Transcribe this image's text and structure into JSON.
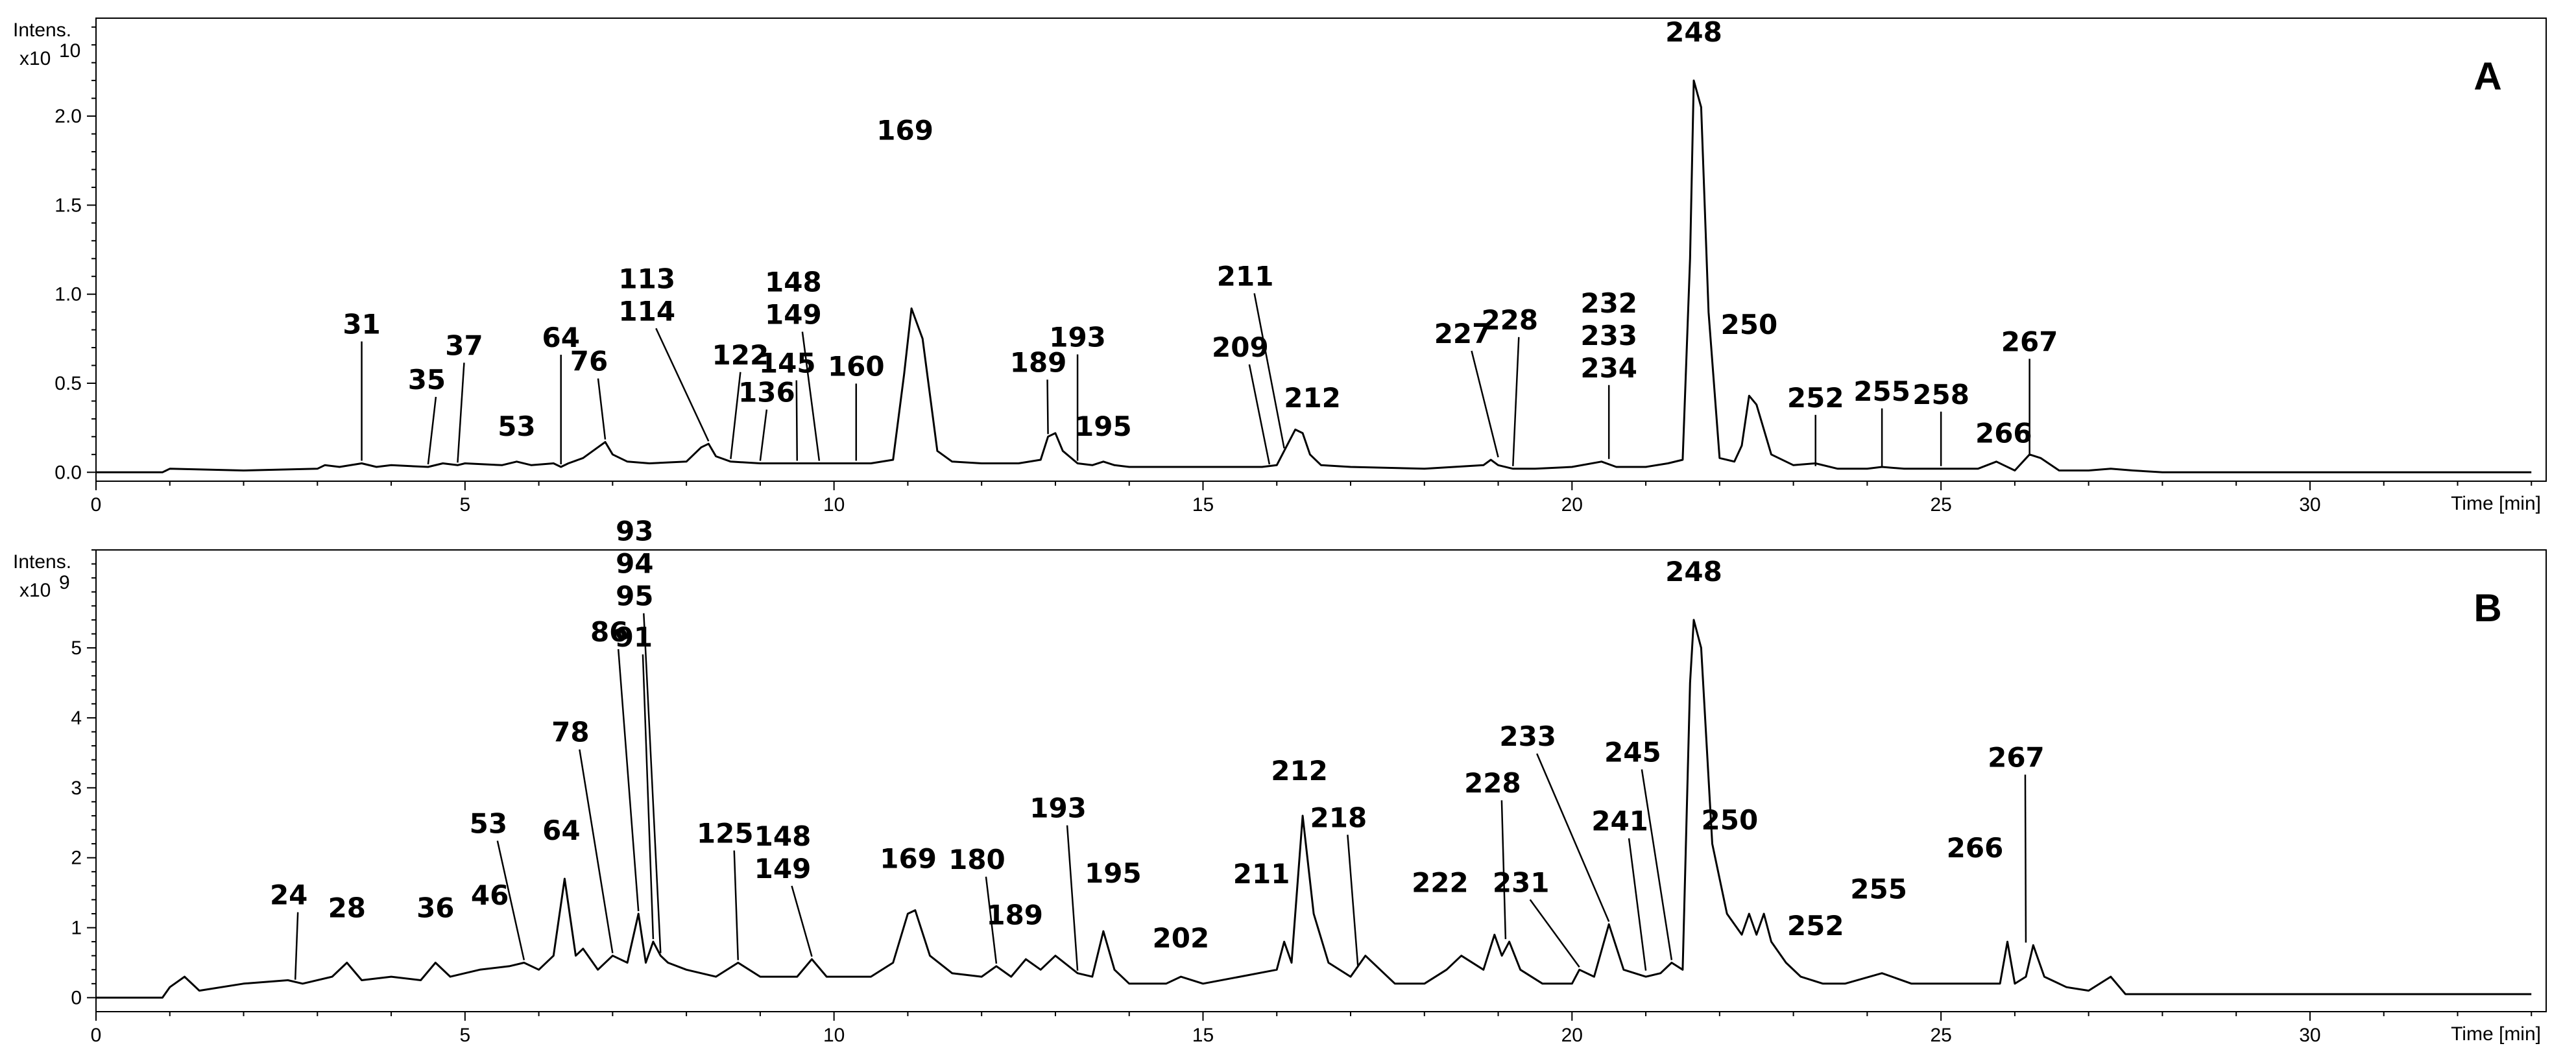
{
  "chart_data": [
    {
      "type": "line",
      "panel_label": "A",
      "ylabel": "Intens.",
      "y_multiplier": "x10",
      "y_exponent": "10",
      "xlabel": "Time [min]",
      "xlim": [
        0,
        33.2
      ],
      "ylim": [
        -0.05,
        2.55
      ],
      "xticks": [
        0,
        5,
        10,
        15,
        20,
        25,
        30
      ],
      "yticks": [
        0.0,
        0.5,
        1.0,
        1.5,
        2.0
      ],
      "ytick_labels": [
        "0.0",
        "0.5",
        "1.0",
        "1.5",
        "2.0"
      ],
      "series": [
        {
          "x": [
            0.0,
            0.9,
            1.0,
            2.0,
            3.0,
            3.1,
            3.3,
            3.6,
            3.8,
            4.0,
            4.5,
            4.7,
            4.9,
            5.0,
            5.5,
            5.7,
            5.9,
            6.2,
            6.3,
            6.4,
            6.6,
            6.8,
            6.9,
            7.0,
            7.2,
            7.5,
            8.0,
            8.2,
            8.3,
            8.4,
            8.6,
            9.0,
            9.5,
            10.0,
            10.5,
            10.8,
            10.95,
            11.05,
            11.2,
            11.4,
            11.6,
            12.0,
            12.5,
            12.8,
            12.9,
            13.0,
            13.1,
            13.3,
            13.5,
            13.65,
            13.8,
            14.0,
            15.0,
            15.8,
            16.0,
            16.1,
            16.25,
            16.35,
            16.45,
            16.6,
            17.0,
            18.0,
            18.8,
            18.9,
            19.0,
            19.2,
            19.5,
            20.0,
            20.4,
            20.6,
            21.0,
            21.3,
            21.5,
            21.6,
            21.65,
            21.75,
            21.85,
            22.0,
            22.2,
            22.3,
            22.4,
            22.5,
            22.7,
            23.0,
            23.3,
            23.6,
            24.0,
            24.2,
            24.5,
            25.0,
            25.5,
            25.75,
            25.85,
            26.0,
            26.2,
            26.35,
            26.6,
            27.0,
            27.3,
            27.6,
            28.0,
            29.0,
            30.0,
            31.0,
            32.0,
            33.0
          ],
          "y": [
            0.0,
            0.0,
            0.02,
            0.01,
            0.02,
            0.04,
            0.03,
            0.05,
            0.03,
            0.04,
            0.03,
            0.05,
            0.04,
            0.05,
            0.04,
            0.06,
            0.04,
            0.05,
            0.03,
            0.05,
            0.08,
            0.14,
            0.17,
            0.1,
            0.06,
            0.05,
            0.06,
            0.14,
            0.16,
            0.09,
            0.06,
            0.05,
            0.05,
            0.05,
            0.05,
            0.07,
            0.55,
            0.92,
            0.75,
            0.12,
            0.06,
            0.05,
            0.05,
            0.07,
            0.2,
            0.22,
            0.12,
            0.05,
            0.04,
            0.06,
            0.04,
            0.03,
            0.03,
            0.03,
            0.04,
            0.12,
            0.24,
            0.22,
            0.1,
            0.04,
            0.03,
            0.02,
            0.04,
            0.07,
            0.04,
            0.02,
            0.02,
            0.03,
            0.06,
            0.03,
            0.03,
            0.05,
            0.07,
            1.2,
            2.2,
            2.05,
            0.9,
            0.08,
            0.06,
            0.15,
            0.43,
            0.38,
            0.1,
            0.04,
            0.05,
            0.02,
            0.02,
            0.03,
            0.02,
            0.02,
            0.02,
            0.06,
            0.04,
            0.01,
            0.1,
            0.08,
            0.01,
            0.01,
            0.02,
            0.01,
            0.0,
            0.0,
            0.0,
            0.0,
            0.0,
            0.0
          ]
        }
      ],
      "peaks": [
        {
          "label": "31",
          "x": 3.6,
          "y": 0.05
        },
        {
          "label": "35",
          "x": 4.5,
          "y": 0.03
        },
        {
          "label": "37",
          "x": 4.9,
          "y": 0.04
        },
        {
          "label": "53",
          "x": 5.7,
          "y": 0.06
        },
        {
          "label": "64",
          "x": 6.3,
          "y": 0.03
        },
        {
          "label": "76",
          "x": 6.9,
          "y": 0.17
        },
        {
          "label": "113",
          "x": 8.3,
          "y": 0.16
        },
        {
          "label": "114",
          "x": 8.3,
          "y": 0.16
        },
        {
          "label": "122",
          "x": 8.6,
          "y": 0.06
        },
        {
          "label": "136",
          "x": 9.0,
          "y": 0.05
        },
        {
          "label": "145",
          "x": 9.5,
          "y": 0.05
        },
        {
          "label": "148",
          "x": 9.8,
          "y": 0.05
        },
        {
          "label": "149",
          "x": 9.8,
          "y": 0.05
        },
        {
          "label": "160",
          "x": 10.3,
          "y": 0.05
        },
        {
          "label": "169",
          "x": 11.05,
          "y": 0.92
        },
        {
          "label": "189",
          "x": 12.9,
          "y": 0.2
        },
        {
          "label": "193",
          "x": 13.3,
          "y": 0.05
        },
        {
          "label": "195",
          "x": 13.65,
          "y": 0.06
        },
        {
          "label": "209",
          "x": 15.9,
          "y": 0.03
        },
        {
          "label": "211",
          "x": 16.1,
          "y": 0.12
        },
        {
          "label": "212",
          "x": 16.35,
          "y": 0.22
        },
        {
          "label": "227",
          "x": 19.0,
          "y": 0.07
        },
        {
          "label": "228",
          "x": 19.2,
          "y": 0.02
        },
        {
          "label": "232",
          "x": 20.5,
          "y": 0.06
        },
        {
          "label": "233",
          "x": 20.5,
          "y": 0.06
        },
        {
          "label": "234",
          "x": 20.5,
          "y": 0.06
        },
        {
          "label": "248",
          "x": 21.65,
          "y": 2.2
        },
        {
          "label": "250",
          "x": 22.4,
          "y": 0.43
        },
        {
          "label": "252",
          "x": 23.3,
          "y": 0.02
        },
        {
          "label": "255",
          "x": 24.2,
          "y": 0.02
        },
        {
          "label": "258",
          "x": 25.0,
          "y": 0.02
        },
        {
          "label": "266",
          "x": 25.85,
          "y": 0.04
        },
        {
          "label": "267",
          "x": 26.2,
          "y": 0.08
        }
      ]
    },
    {
      "type": "line",
      "panel_label": "B",
      "ylabel": "Intens.",
      "y_multiplier": "x10",
      "y_exponent": "9",
      "xlabel": "Time [min]",
      "xlim": [
        0,
        33.2
      ],
      "ylim": [
        -0.2,
        6.4
      ],
      "xticks": [
        0,
        5,
        10,
        15,
        20,
        25,
        30
      ],
      "yticks": [
        0,
        1,
        2,
        3,
        4,
        5
      ],
      "ytick_labels": [
        "0",
        "1",
        "2",
        "3",
        "4",
        "5"
      ],
      "series": [
        {
          "x": [
            0.0,
            0.9,
            1.0,
            1.2,
            1.4,
            2.0,
            2.6,
            2.8,
            3.2,
            3.4,
            3.6,
            4.0,
            4.4,
            4.6,
            4.8,
            5.0,
            5.2,
            5.6,
            5.8,
            6.0,
            6.2,
            6.35,
            6.5,
            6.6,
            6.8,
            7.0,
            7.2,
            7.35,
            7.45,
            7.55,
            7.65,
            7.75,
            8.0,
            8.4,
            8.7,
            9.0,
            9.5,
            9.7,
            9.9,
            10.5,
            10.8,
            11.0,
            11.1,
            11.3,
            11.6,
            12.0,
            12.2,
            12.4,
            12.6,
            12.8,
            13.0,
            13.3,
            13.5,
            13.65,
            13.8,
            14.0,
            14.5,
            14.7,
            15.0,
            15.5,
            16.0,
            16.1,
            16.2,
            16.35,
            16.5,
            16.7,
            17.0,
            17.2,
            17.6,
            18.0,
            18.3,
            18.5,
            18.8,
            18.95,
            19.05,
            19.15,
            19.3,
            19.6,
            20.0,
            20.1,
            20.3,
            20.5,
            20.7,
            21.0,
            21.2,
            21.35,
            21.5,
            21.6,
            21.65,
            21.75,
            21.9,
            22.1,
            22.3,
            22.4,
            22.5,
            22.6,
            22.7,
            22.9,
            23.1,
            23.4,
            23.7,
            24.2,
            24.6,
            25.0,
            25.5,
            25.8,
            25.9,
            26.0,
            26.15,
            26.25,
            26.4,
            26.7,
            27.0,
            27.3,
            27.5,
            28.0,
            29.0,
            30.0,
            31.0,
            32.0,
            33.0
          ],
          "y": [
            0.0,
            0.0,
            0.15,
            0.3,
            0.1,
            0.2,
            0.25,
            0.2,
            0.3,
            0.5,
            0.25,
            0.3,
            0.25,
            0.5,
            0.3,
            0.35,
            0.4,
            0.45,
            0.5,
            0.4,
            0.6,
            1.7,
            0.6,
            0.7,
            0.4,
            0.6,
            0.5,
            1.2,
            0.5,
            0.8,
            0.6,
            0.5,
            0.4,
            0.3,
            0.5,
            0.3,
            0.3,
            0.55,
            0.3,
            0.3,
            0.5,
            1.2,
            1.25,
            0.6,
            0.35,
            0.3,
            0.45,
            0.3,
            0.55,
            0.4,
            0.6,
            0.35,
            0.3,
            0.95,
            0.4,
            0.2,
            0.2,
            0.3,
            0.2,
            0.3,
            0.4,
            0.8,
            0.5,
            2.6,
            1.2,
            0.5,
            0.3,
            0.6,
            0.2,
            0.2,
            0.4,
            0.6,
            0.4,
            0.9,
            0.6,
            0.8,
            0.4,
            0.2,
            0.2,
            0.4,
            0.3,
            1.05,
            0.4,
            0.3,
            0.35,
            0.5,
            0.4,
            4.5,
            5.4,
            5.0,
            2.2,
            1.2,
            0.9,
            1.2,
            0.9,
            1.2,
            0.8,
            0.5,
            0.3,
            0.2,
            0.2,
            0.35,
            0.2,
            0.2,
            0.2,
            0.2,
            0.8,
            0.2,
            0.3,
            0.75,
            0.3,
            0.15,
            0.1,
            0.3,
            0.05,
            0.05,
            0.05,
            0.05,
            0.05,
            0.05,
            0.05
          ]
        }
      ],
      "peaks": [
        {
          "label": "24",
          "x": 2.7,
          "y": 0.22
        },
        {
          "label": "28",
          "x": 3.4,
          "y": 0.5
        },
        {
          "label": "36",
          "x": 4.6,
          "y": 0.5
        },
        {
          "label": "46",
          "x": 5.6,
          "y": 0.45
        },
        {
          "label": "53",
          "x": 5.8,
          "y": 0.5
        },
        {
          "label": "64",
          "x": 6.35,
          "y": 1.7
        },
        {
          "label": "78",
          "x": 7.0,
          "y": 0.6
        },
        {
          "label": "86",
          "x": 7.35,
          "y": 1.2
        },
        {
          "label": "91",
          "x": 7.55,
          "y": 0.8
        },
        {
          "label": "93",
          "x": 7.65,
          "y": 0.6
        },
        {
          "label": "94",
          "x": 7.65,
          "y": 0.6
        },
        {
          "label": "95",
          "x": 7.65,
          "y": 0.6
        },
        {
          "label": "125",
          "x": 8.7,
          "y": 0.5
        },
        {
          "label": "148",
          "x": 9.7,
          "y": 0.55
        },
        {
          "label": "149",
          "x": 9.7,
          "y": 0.55
        },
        {
          "label": "169",
          "x": 11.05,
          "y": 1.25
        },
        {
          "label": "180",
          "x": 12.2,
          "y": 0.45
        },
        {
          "label": "189",
          "x": 12.8,
          "y": 0.4
        },
        {
          "label": "193",
          "x": 13.3,
          "y": 0.35
        },
        {
          "label": "195",
          "x": 13.65,
          "y": 0.95
        },
        {
          "label": "202",
          "x": 14.7,
          "y": 0.3
        },
        {
          "label": "211",
          "x": 16.1,
          "y": 0.8
        },
        {
          "label": "212",
          "x": 16.35,
          "y": 2.6
        },
        {
          "label": "218",
          "x": 17.1,
          "y": 0.4
        },
        {
          "label": "222",
          "x": 18.3,
          "y": 0.4
        },
        {
          "label": "228",
          "x": 19.1,
          "y": 0.8
        },
        {
          "label": "231",
          "x": 20.1,
          "y": 0.4
        },
        {
          "label": "233",
          "x": 20.5,
          "y": 1.05
        },
        {
          "label": "241",
          "x": 21.0,
          "y": 0.35
        },
        {
          "label": "245",
          "x": 21.35,
          "y": 0.5
        },
        {
          "label": "248",
          "x": 21.65,
          "y": 5.4
        },
        {
          "label": "250",
          "x": 22.4,
          "y": 1.2
        },
        {
          "label": "252",
          "x": 23.3,
          "y": 0.2
        },
        {
          "label": "255",
          "x": 24.2,
          "y": 0.35
        },
        {
          "label": "266",
          "x": 25.9,
          "y": 0.8
        },
        {
          "label": "267",
          "x": 26.15,
          "y": 0.75
        }
      ]
    }
  ]
}
